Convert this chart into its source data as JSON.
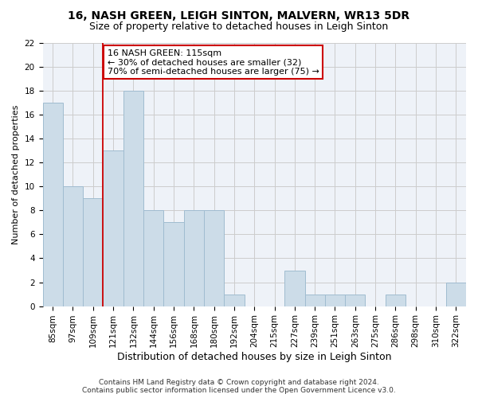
{
  "title": "16, NASH GREEN, LEIGH SINTON, MALVERN, WR13 5DR",
  "subtitle": "Size of property relative to detached houses in Leigh Sinton",
  "xlabel": "Distribution of detached houses by size in Leigh Sinton",
  "ylabel": "Number of detached properties",
  "footer_line1": "Contains HM Land Registry data © Crown copyright and database right 2024.",
  "footer_line2": "Contains public sector information licensed under the Open Government Licence v3.0.",
  "categories": [
    "85sqm",
    "97sqm",
    "109sqm",
    "121sqm",
    "132sqm",
    "144sqm",
    "156sqm",
    "168sqm",
    "180sqm",
    "192sqm",
    "204sqm",
    "215sqm",
    "227sqm",
    "239sqm",
    "251sqm",
    "263sqm",
    "275sqm",
    "286sqm",
    "298sqm",
    "310sqm",
    "322sqm"
  ],
  "values": [
    17,
    10,
    9,
    13,
    18,
    8,
    7,
    8,
    8,
    1,
    0,
    0,
    3,
    1,
    1,
    1,
    0,
    1,
    0,
    0,
    2
  ],
  "bar_color": "#ccdce8",
  "bar_edge_color": "#a0bcd0",
  "red_line_x": 2.5,
  "annotation_text": "16 NASH GREEN: 115sqm\n← 30% of detached houses are smaller (32)\n70% of semi-detached houses are larger (75) →",
  "annotation_box_color": "#ffffff",
  "annotation_box_edge_color": "#cc0000",
  "ylim": [
    0,
    22
  ],
  "yticks": [
    0,
    2,
    4,
    6,
    8,
    10,
    12,
    14,
    16,
    18,
    20,
    22
  ],
  "grid_color": "#cccccc",
  "background_color": "#eef2f8",
  "title_fontsize": 10,
  "subtitle_fontsize": 9,
  "ylabel_fontsize": 8,
  "xlabel_fontsize": 9,
  "tick_fontsize": 7.5,
  "footer_fontsize": 6.5,
  "annotation_fontsize": 8
}
